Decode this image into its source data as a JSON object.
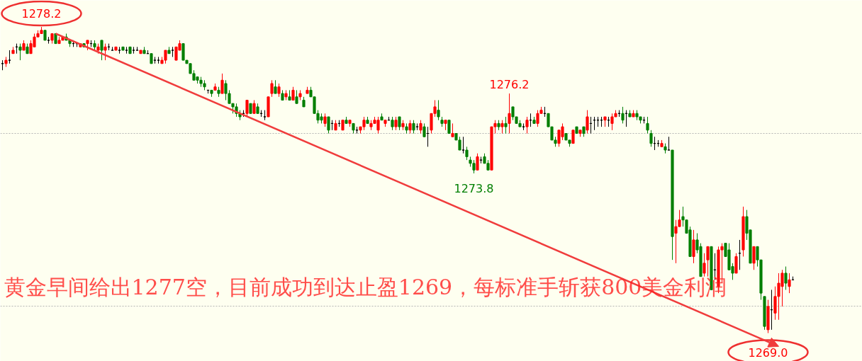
{
  "chart_data": {
    "type": "candlestick",
    "ylim": [
      1268.15,
      1279.0
    ],
    "yticks": [
      {
        "value": 1275.0,
        "label": null
      },
      {
        "value": 1269.8,
        "label": null
      }
    ],
    "grid": "y",
    "tick_labels": false,
    "categories": [
      null,
      null,
      null,
      null,
      null,
      null,
      null,
      null,
      null,
      null,
      null,
      null,
      null,
      null,
      null,
      null,
      null,
      null,
      null,
      null,
      null,
      null,
      null,
      null,
      null,
      null,
      null,
      null,
      null,
      null,
      null,
      null,
      null,
      null,
      null,
      null,
      null,
      null,
      null,
      null,
      null,
      null,
      null,
      null,
      null,
      null,
      null,
      null,
      null,
      null,
      null,
      null,
      null,
      null,
      null,
      null,
      null,
      null,
      null,
      null,
      null,
      null,
      null,
      null,
      null,
      null,
      null,
      null,
      null,
      null,
      null,
      null,
      null,
      null,
      null,
      null,
      null,
      null,
      null,
      null,
      null,
      null,
      null,
      null,
      null,
      null,
      null,
      null,
      null,
      null,
      null,
      null,
      null,
      null,
      null,
      null,
      null,
      null,
      null,
      null,
      null,
      null,
      null,
      null,
      null,
      null,
      null,
      null,
      null,
      null,
      null,
      null,
      null,
      null,
      null,
      null,
      null,
      null,
      null,
      null,
      null,
      null,
      null,
      null,
      null,
      null,
      null,
      null,
      null,
      null,
      null,
      null,
      null,
      null,
      null,
      null,
      null,
      null,
      null,
      null,
      null,
      null,
      null,
      null,
      null,
      null,
      null,
      null,
      null,
      null,
      null,
      null,
      null,
      null,
      null,
      null,
      null,
      null,
      null,
      null,
      null,
      null,
      null,
      null,
      null,
      null,
      null,
      null,
      null,
      null,
      null,
      null,
      null,
      null,
      null,
      null,
      null,
      null,
      null,
      null,
      null,
      null,
      null,
      null,
      null,
      null,
      null,
      null,
      null,
      null,
      null,
      null,
      null,
      null,
      null,
      null,
      null,
      null,
      null,
      null,
      null,
      null,
      null,
      null,
      null,
      null,
      null,
      null,
      null,
      null,
      null,
      null,
      null,
      null,
      null,
      null,
      null,
      null,
      null,
      null,
      null,
      null,
      null,
      null
    ],
    "series": [
      {
        "colors": [
          "#000000",
          "#ff0000",
          "#000000",
          "#ff0000",
          "#000000",
          "#007f00",
          "#ff0000",
          "#007f00",
          "#ff0000",
          "#ff0000",
          "#ff0000",
          "#ff0000",
          "#007f00",
          "#000000",
          "#ff0000",
          "#007f00",
          "#ff0000",
          "#ff0000",
          "#007f00",
          "#007f00",
          "#000000",
          "#000000",
          "#ff0000",
          "#007f00",
          "#ff0000",
          "#000000",
          "#007f00",
          "#ff0000",
          "#007f00",
          "#ff0000",
          "#000000",
          "#000000",
          "#ff0000",
          "#000000",
          "#007f00",
          "#000000",
          "#007f00",
          "#000000",
          "#000000",
          "#ff0000",
          "#007f00",
          "#000000",
          "#007f00",
          "#000000",
          "#000000",
          "#ff0000",
          "#ff0000",
          "#007f00",
          "#000000",
          "#ff0000",
          "#ff0000",
          "#007f00",
          "#007f00",
          "#007f00",
          "#007f00",
          "#007f00",
          "#007f00",
          "#007f00",
          "#000000",
          "#007f00",
          "#ff0000",
          "#007f00",
          "#ff0000",
          "#007f00",
          "#007f00",
          "#007f00",
          "#007f00",
          "#007f00",
          "#000000",
          "#ff0000",
          "#007f00",
          "#ff0000",
          "#007f00",
          "#000000",
          "#000000",
          "#ff0000",
          "#ff0000",
          "#007f00",
          "#ff0000",
          "#007f00",
          "#ff0000",
          "#007f00",
          "#ff0000",
          "#007f00",
          "#ff0000",
          "#007f00",
          "#ff0000",
          "#007f00",
          "#007f00",
          "#007f00",
          "#007f00",
          "#ff0000",
          "#007f00",
          "#000000",
          "#ff0000",
          "#000000",
          "#ff0000",
          "#007f00",
          "#ff0000",
          "#007f00",
          "#000000",
          "#ff0000",
          "#ff0000",
          "#007f00",
          "#ff0000",
          "#ff0000",
          "#ff0000",
          "#007f00",
          "#ff0000",
          "#000000",
          "#007f00",
          "#ff0000",
          "#007f00",
          "#ff0000",
          "#007f00",
          "#ff0000",
          "#007f00",
          "#000000",
          "#ff0000",
          "#007f00",
          "#000000",
          "#ff0000",
          "#ff0000",
          "#007f00",
          "#007f00",
          "#ff0000",
          "#007f00",
          "#ff0000",
          "#007f00",
          "#007f00",
          "#000000",
          "#007f00",
          "#007f00",
          "#007f00",
          "#ff0000",
          "#000000",
          "#007f00",
          "#007f00",
          "#ff0000",
          "#ff0000",
          "#007f00",
          "#ff0000",
          "#007f00",
          "#ff0000",
          "#007f00",
          "#007f00",
          "#007f00",
          "#000000",
          "#ff0000",
          "#000000",
          "#007f00",
          "#ff0000",
          "#ff0000",
          "#000000",
          "#007f00",
          "#007f00",
          "#007f00",
          "#ff0000",
          "#ff0000",
          "#007f00",
          "#007f00",
          "#ff0000",
          "#007f00",
          "#ff0000",
          "#007f00",
          "#ff0000",
          "#000000",
          "#000000",
          "#000000",
          "#000000",
          "#ff0000",
          "#000000",
          "#ff0000",
          "#ff0000",
          "#000000",
          "#007f00",
          "#000000",
          "#007f00",
          "#ff0000",
          "#007f00",
          "#007f00",
          "#000000",
          "#007f00",
          "#007f00",
          "#000000",
          "#000000",
          "#ff0000",
          "#007f00",
          "#000000",
          "#007f00",
          "#ff0000",
          "#ff0000",
          "#007f00",
          "#007f00",
          "#007f00",
          "#ff0000",
          "#007f00",
          "#007f00",
          "#ff0000",
          "#ff0000",
          "#007f00",
          "#000000",
          "#ff0000",
          "#ff0000",
          "#007f00",
          "#007f00",
          "#007f00",
          "#ff0000",
          "#000000",
          "#ff0000",
          "#007f00",
          "#007f00",
          "#ff0000",
          "#007f00",
          "#007f00",
          "#007f00",
          "#ff0000",
          "#000000",
          "#ff0000",
          "#ff0000",
          "#ff0000",
          "#007f00",
          "#ff0000",
          "#000000"
        ],
        "ohlc": [
          [
            1277.1,
            1277.2,
            1276.9,
            1277.1
          ],
          [
            1277.1,
            1277.3,
            1277.0,
            1277.2
          ],
          [
            1277.2,
            1277.5,
            1277.1,
            1277.2
          ],
          [
            1277.4,
            1277.6,
            1277.4,
            1277.5
          ],
          [
            1277.6,
            1277.7,
            1277.4,
            1277.6
          ],
          [
            1277.6,
            1277.7,
            1277.2,
            1277.5
          ],
          [
            1277.5,
            1277.8,
            1277.5,
            1277.7
          ],
          [
            1277.6,
            1277.7,
            1277.4,
            1277.4
          ],
          [
            1277.4,
            1277.8,
            1277.4,
            1277.7
          ],
          [
            1277.6,
            1278.0,
            1277.6,
            1277.9
          ],
          [
            1277.9,
            1278.1,
            1277.9,
            1278.0
          ],
          [
            1278.0,
            1278.2,
            1278.0,
            1278.1
          ],
          [
            1278.1,
            1278.1,
            1277.8,
            1277.8
          ],
          [
            1277.8,
            1277.9,
            1277.7,
            1277.8
          ],
          [
            1277.8,
            1278.0,
            1277.7,
            1278.0
          ],
          [
            1278.0,
            1278.0,
            1277.7,
            1277.7
          ],
          [
            1277.7,
            1277.9,
            1277.7,
            1277.8
          ],
          [
            1277.8,
            1277.9,
            1277.8,
            1277.9
          ],
          [
            1277.9,
            1278.0,
            1277.8,
            1277.8
          ],
          [
            1277.8,
            1277.8,
            1277.6,
            1277.7
          ],
          [
            1277.7,
            1277.8,
            1277.6,
            1277.7
          ],
          [
            1277.7,
            1277.7,
            1277.6,
            1277.7
          ],
          [
            1277.6,
            1277.7,
            1277.6,
            1277.7
          ],
          [
            1277.7,
            1277.7,
            1277.6,
            1277.6
          ],
          [
            1277.7,
            1277.8,
            1277.5,
            1277.8
          ],
          [
            1277.7,
            1277.8,
            1277.6,
            1277.7
          ],
          [
            1277.7,
            1277.8,
            1277.5,
            1277.6
          ],
          [
            1277.5,
            1277.7,
            1277.4,
            1277.6
          ],
          [
            1277.8,
            1277.8,
            1277.2,
            1277.5
          ],
          [
            1277.5,
            1277.7,
            1277.2,
            1277.6
          ],
          [
            1277.6,
            1277.7,
            1277.5,
            1277.6
          ],
          [
            1277.5,
            1277.6,
            1277.5,
            1277.5
          ],
          [
            1277.5,
            1277.6,
            1277.5,
            1277.6
          ],
          [
            1277.5,
            1277.6,
            1277.4,
            1277.5
          ],
          [
            1277.6,
            1277.6,
            1277.5,
            1277.5
          ],
          [
            1277.5,
            1277.6,
            1277.4,
            1277.5
          ],
          [
            1277.6,
            1277.6,
            1277.4,
            1277.4
          ],
          [
            1277.5,
            1277.6,
            1277.4,
            1277.5
          ],
          [
            1277.5,
            1277.6,
            1277.5,
            1277.5
          ],
          [
            1277.4,
            1277.5,
            1277.4,
            1277.5
          ],
          [
            1277.5,
            1277.6,
            1277.4,
            1277.4
          ],
          [
            1277.4,
            1277.5,
            1277.4,
            1277.4
          ],
          [
            1277.4,
            1277.4,
            1277.1,
            1277.1
          ],
          [
            1277.2,
            1277.3,
            1277.1,
            1277.2
          ],
          [
            1277.2,
            1277.3,
            1277.1,
            1277.2
          ],
          [
            1277.1,
            1277.3,
            1277.1,
            1277.2
          ],
          [
            1277.2,
            1277.5,
            1277.1,
            1277.5
          ],
          [
            1277.5,
            1277.6,
            1277.4,
            1277.4
          ],
          [
            1277.5,
            1277.6,
            1277.3,
            1277.5
          ],
          [
            1277.2,
            1277.6,
            1277.2,
            1277.6
          ],
          [
            1277.5,
            1277.8,
            1277.5,
            1277.7
          ],
          [
            1277.7,
            1277.7,
            1277.2,
            1277.2
          ],
          [
            1277.2,
            1277.2,
            1277.1,
            1277.1
          ],
          [
            1277.1,
            1277.1,
            1276.8,
            1276.8
          ],
          [
            1276.8,
            1276.9,
            1276.6,
            1276.6
          ],
          [
            1276.7,
            1276.7,
            1276.5,
            1276.6
          ],
          [
            1276.6,
            1276.7,
            1276.4,
            1276.5
          ],
          [
            1276.5,
            1276.6,
            1276.3,
            1276.4
          ],
          [
            1276.3,
            1276.3,
            1276.2,
            1276.3
          ],
          [
            1276.3,
            1276.3,
            1276.1,
            1276.2
          ],
          [
            1276.3,
            1276.5,
            1276.3,
            1276.4
          ],
          [
            1276.3,
            1276.4,
            1276.1,
            1276.2
          ],
          [
            1276.2,
            1276.8,
            1276.2,
            1276.6
          ],
          [
            1276.5,
            1276.6,
            1276.0,
            1276.2
          ],
          [
            1276.2,
            1276.3,
            1275.9,
            1275.9
          ],
          [
            1275.9,
            1275.9,
            1275.6,
            1275.8
          ],
          [
            1275.8,
            1275.9,
            1275.5,
            1275.6
          ],
          [
            1275.6,
            1275.7,
            1275.4,
            1275.5
          ],
          [
            1275.6,
            1275.7,
            1275.5,
            1275.6
          ],
          [
            1275.6,
            1276.0,
            1275.5,
            1276.0
          ],
          [
            1275.9,
            1275.9,
            1275.6,
            1275.6
          ],
          [
            1275.6,
            1276.0,
            1275.6,
            1275.9
          ],
          [
            1275.8,
            1275.9,
            1275.6,
            1275.6
          ],
          [
            1275.6,
            1275.7,
            1275.5,
            1275.6
          ],
          [
            1275.5,
            1275.7,
            1275.4,
            1275.5
          ],
          [
            1275.5,
            1276.1,
            1275.5,
            1276.1
          ],
          [
            1276.2,
            1276.6,
            1276.1,
            1276.5
          ],
          [
            1276.4,
            1276.6,
            1276.2,
            1276.2
          ],
          [
            1276.2,
            1276.5,
            1276.1,
            1276.4
          ],
          [
            1276.2,
            1276.3,
            1276.0,
            1276.0
          ],
          [
            1276.1,
            1276.3,
            1276.0,
            1276.2
          ],
          [
            1276.1,
            1276.3,
            1276.0,
            1276.0
          ],
          [
            1276.0,
            1276.4,
            1276.0,
            1276.3
          ],
          [
            1276.1,
            1276.3,
            1275.9,
            1275.9
          ],
          [
            1276.1,
            1276.3,
            1276.0,
            1276.2
          ],
          [
            1276.0,
            1276.1,
            1275.8,
            1275.8
          ],
          [
            1276.2,
            1276.4,
            1276.2,
            1276.3
          ],
          [
            1276.3,
            1276.4,
            1276.1,
            1276.1
          ],
          [
            1276.1,
            1276.1,
            1275.6,
            1275.6
          ],
          [
            1275.6,
            1275.7,
            1275.3,
            1275.4
          ],
          [
            1275.5,
            1275.6,
            1275.3,
            1275.4
          ],
          [
            1275.3,
            1275.6,
            1275.2,
            1275.5
          ],
          [
            1275.5,
            1275.5,
            1275.0,
            1275.1
          ],
          [
            1275.3,
            1275.4,
            1275.1,
            1275.3
          ],
          [
            1275.1,
            1275.4,
            1275.1,
            1275.3
          ],
          [
            1275.3,
            1275.4,
            1275.2,
            1275.3
          ],
          [
            1275.1,
            1275.4,
            1275.1,
            1275.4
          ],
          [
            1275.4,
            1275.5,
            1275.3,
            1275.3
          ],
          [
            1275.3,
            1275.4,
            1275.2,
            1275.4
          ],
          [
            1275.3,
            1275.3,
            1275.0,
            1275.1
          ],
          [
            1275.1,
            1275.2,
            1275.0,
            1275.1
          ],
          [
            1275.1,
            1275.2,
            1275.0,
            1275.2
          ],
          [
            1275.2,
            1275.5,
            1275.1,
            1275.4
          ],
          [
            1275.4,
            1275.5,
            1275.3,
            1275.3
          ],
          [
            1275.2,
            1275.4,
            1275.1,
            1275.3
          ],
          [
            1275.3,
            1275.5,
            1275.3,
            1275.4
          ],
          [
            1275.1,
            1275.5,
            1275.0,
            1275.4
          ],
          [
            1275.5,
            1275.6,
            1275.4,
            1275.4
          ],
          [
            1275.3,
            1275.4,
            1275.2,
            1275.4
          ],
          [
            1275.4,
            1275.5,
            1275.4,
            1275.4
          ],
          [
            1275.4,
            1275.5,
            1275.1,
            1275.2
          ],
          [
            1275.2,
            1275.5,
            1275.1,
            1275.4
          ],
          [
            1275.5,
            1275.5,
            1275.1,
            1275.2
          ],
          [
            1275.2,
            1275.4,
            1275.1,
            1275.3
          ],
          [
            1275.2,
            1275.3,
            1275.0,
            1275.1
          ],
          [
            1275.1,
            1275.4,
            1275.0,
            1275.3
          ],
          [
            1275.3,
            1275.4,
            1275.0,
            1275.1
          ],
          [
            1275.2,
            1275.3,
            1275.1,
            1275.2
          ],
          [
            1275.1,
            1275.4,
            1275.0,
            1275.3
          ],
          [
            1275.2,
            1275.3,
            1274.9,
            1274.9
          ],
          [
            1275.0,
            1275.2,
            1274.6,
            1275.0
          ],
          [
            1275.1,
            1275.6,
            1275.0,
            1275.6
          ],
          [
            1275.6,
            1276.0,
            1275.5,
            1275.8
          ],
          [
            1275.7,
            1276.0,
            1275.4,
            1275.5
          ],
          [
            1275.4,
            1275.5,
            1275.2,
            1275.3
          ],
          [
            1275.3,
            1275.4,
            1275.1,
            1275.4
          ],
          [
            1275.4,
            1275.4,
            1275.0,
            1275.0
          ],
          [
            1274.9,
            1275.3,
            1274.9,
            1275.0
          ],
          [
            1275.0,
            1275.0,
            1274.8,
            1274.8
          ],
          [
            1274.8,
            1274.9,
            1274.5,
            1274.5
          ],
          [
            1274.5,
            1274.9,
            1274.4,
            1274.5
          ],
          [
            1274.5,
            1274.6,
            1274.2,
            1274.3
          ],
          [
            1274.2,
            1274.3,
            1274.0,
            1274.1
          ],
          [
            1274.1,
            1274.2,
            1273.8,
            1273.9
          ],
          [
            1273.9,
            1274.4,
            1273.9,
            1274.3
          ],
          [
            1274.2,
            1274.3,
            1274.1,
            1274.2
          ],
          [
            1274.3,
            1274.4,
            1274.1,
            1274.1
          ],
          [
            1274.1,
            1274.2,
            1273.9,
            1273.9
          ],
          [
            1273.9,
            1275.2,
            1273.9,
            1275.2
          ],
          [
            1275.2,
            1275.4,
            1275.0,
            1275.3
          ],
          [
            1275.3,
            1275.4,
            1275.1,
            1275.2
          ],
          [
            1275.2,
            1275.4,
            1275.0,
            1275.3
          ],
          [
            1275.3,
            1275.5,
            1275.0,
            1275.2
          ],
          [
            1275.3,
            1276.2,
            1275.0,
            1275.6
          ],
          [
            1275.8,
            1275.8,
            1275.4,
            1275.5
          ],
          [
            1275.5,
            1275.5,
            1275.3,
            1275.3
          ],
          [
            1275.3,
            1275.4,
            1275.2,
            1275.2
          ],
          [
            1275.2,
            1275.3,
            1275.1,
            1275.2
          ],
          [
            1275.2,
            1275.5,
            1275.0,
            1275.4
          ],
          [
            1275.4,
            1275.6,
            1275.2,
            1275.4
          ],
          [
            1275.4,
            1275.5,
            1275.3,
            1275.3
          ],
          [
            1275.3,
            1275.7,
            1275.2,
            1275.6
          ],
          [
            1275.6,
            1275.8,
            1275.6,
            1275.7
          ],
          [
            1275.6,
            1275.8,
            1275.5,
            1275.6
          ],
          [
            1275.6,
            1275.6,
            1275.2,
            1275.2
          ],
          [
            1275.2,
            1275.2,
            1274.8,
            1274.8
          ],
          [
            1274.8,
            1274.9,
            1274.6,
            1274.7
          ],
          [
            1274.7,
            1275.1,
            1274.6,
            1275.1
          ],
          [
            1274.9,
            1275.3,
            1274.8,
            1275.2
          ],
          [
            1275.0,
            1275.0,
            1274.8,
            1274.8
          ],
          [
            1274.8,
            1274.8,
            1274.6,
            1274.7
          ],
          [
            1274.7,
            1275.1,
            1274.7,
            1275.1
          ],
          [
            1275.2,
            1275.2,
            1275.0,
            1275.0
          ],
          [
            1275.0,
            1275.1,
            1274.9,
            1275.1
          ],
          [
            1275.2,
            1275.2,
            1274.9,
            1275.0
          ],
          [
            1275.1,
            1275.7,
            1275.0,
            1275.5
          ],
          [
            1275.3,
            1275.5,
            1275.0,
            1275.3
          ],
          [
            1275.4,
            1275.5,
            1275.1,
            1275.4
          ],
          [
            1275.4,
            1275.5,
            1275.2,
            1275.4
          ],
          [
            1275.4,
            1275.5,
            1275.2,
            1275.4
          ],
          [
            1275.4,
            1275.5,
            1275.2,
            1275.5
          ],
          [
            1275.4,
            1275.5,
            1275.2,
            1275.4
          ],
          [
            1275.3,
            1275.6,
            1275.1,
            1275.5
          ],
          [
            1275.5,
            1275.7,
            1275.5,
            1275.6
          ],
          [
            1275.6,
            1275.7,
            1275.5,
            1275.6
          ],
          [
            1275.6,
            1275.8,
            1275.3,
            1275.4
          ],
          [
            1275.6,
            1275.7,
            1275.2,
            1275.6
          ],
          [
            1275.6,
            1275.7,
            1275.5,
            1275.5
          ],
          [
            1275.5,
            1275.7,
            1275.5,
            1275.6
          ],
          [
            1275.6,
            1275.7,
            1275.4,
            1275.5
          ],
          [
            1275.5,
            1275.5,
            1275.3,
            1275.4
          ],
          [
            1275.4,
            1275.5,
            1275.3,
            1275.4
          ],
          [
            1275.3,
            1275.5,
            1275.0,
            1275.1
          ],
          [
            1275.0,
            1275.1,
            1274.6,
            1274.7
          ],
          [
            1274.7,
            1274.9,
            1274.5,
            1274.7
          ],
          [
            1274.7,
            1274.8,
            1274.6,
            1274.7
          ],
          [
            1274.6,
            1274.8,
            1274.6,
            1274.7
          ],
          [
            1274.6,
            1274.7,
            1274.4,
            1274.5
          ],
          [
            1274.5,
            1274.9,
            1274.5,
            1274.5
          ],
          [
            1274.5,
            1274.5,
            1271.2,
            1271.9
          ],
          [
            1272.0,
            1272.4,
            1271.1,
            1272.2
          ],
          [
            1272.2,
            1272.7,
            1272.2,
            1272.4
          ],
          [
            1272.5,
            1272.8,
            1272.2,
            1272.4
          ],
          [
            1272.4,
            1272.4,
            1272.0,
            1272.0
          ],
          [
            1272.1,
            1272.2,
            1271.3,
            1271.3
          ],
          [
            1271.3,
            1272.1,
            1271.1,
            1271.8
          ],
          [
            1271.8,
            1272.0,
            1271.4,
            1271.5
          ],
          [
            1271.6,
            1271.7,
            1270.7,
            1270.7
          ],
          [
            1270.8,
            1271.4,
            1270.7,
            1271.1
          ],
          [
            1271.2,
            1271.6,
            1270.7,
            1271.6
          ],
          [
            1271.6,
            1271.6,
            1270.3,
            1270.3
          ],
          [
            1270.9,
            1271.4,
            1270.6,
            1270.9
          ],
          [
            1270.4,
            1271.6,
            1270.2,
            1271.5
          ],
          [
            1271.5,
            1271.7,
            1270.5,
            1271.6
          ],
          [
            1271.7,
            1271.7,
            1271.3,
            1271.3
          ],
          [
            1271.5,
            1271.7,
            1270.9,
            1270.9
          ],
          [
            1271.0,
            1271.1,
            1270.6,
            1270.8
          ],
          [
            1270.8,
            1271.4,
            1270.8,
            1271.3
          ],
          [
            1271.4,
            1271.8,
            1270.9,
            1271.4
          ],
          [
            1271.5,
            1272.8,
            1271.3,
            1272.5
          ],
          [
            1272.5,
            1272.7,
            1271.8,
            1272.0
          ],
          [
            1272.1,
            1272.1,
            1271.1,
            1271.1
          ],
          [
            1271.1,
            1271.6,
            1270.9,
            1271.6
          ],
          [
            1271.6,
            1271.6,
            1271.0,
            1271.2
          ],
          [
            1271.2,
            1271.2,
            1270.0,
            1270.2
          ],
          [
            1270.1,
            1270.1,
            1269.1,
            1269.2
          ],
          [
            1269.1,
            1270.0,
            1269.0,
            1269.8
          ],
          [
            1269.7,
            1270.3,
            1269.1,
            1269.7
          ],
          [
            1269.6,
            1270.4,
            1269.4,
            1270.1
          ],
          [
            1270.1,
            1270.8,
            1269.4,
            1270.5
          ],
          [
            1270.4,
            1270.9,
            1269.8,
            1270.8
          ],
          [
            1270.8,
            1271.0,
            1270.3,
            1270.5
          ],
          [
            1270.4,
            1270.8,
            1270.2,
            1270.6
          ],
          [
            1270.6,
            1270.7,
            1270.6,
            1270.6
          ]
        ]
      }
    ],
    "annotations": [
      {
        "text": "1278.2",
        "y": 1278.2
      },
      {
        "text": "1276.2",
        "y": 1276.2
      },
      {
        "text": "1273.8",
        "y": 1273.8
      },
      {
        "text": "1269.0",
        "y": 1269.0
      },
      "黄金早间给出1277空，目前成功到达止盈1269，每标准手斩获800美金利润"
    ]
  }
}
